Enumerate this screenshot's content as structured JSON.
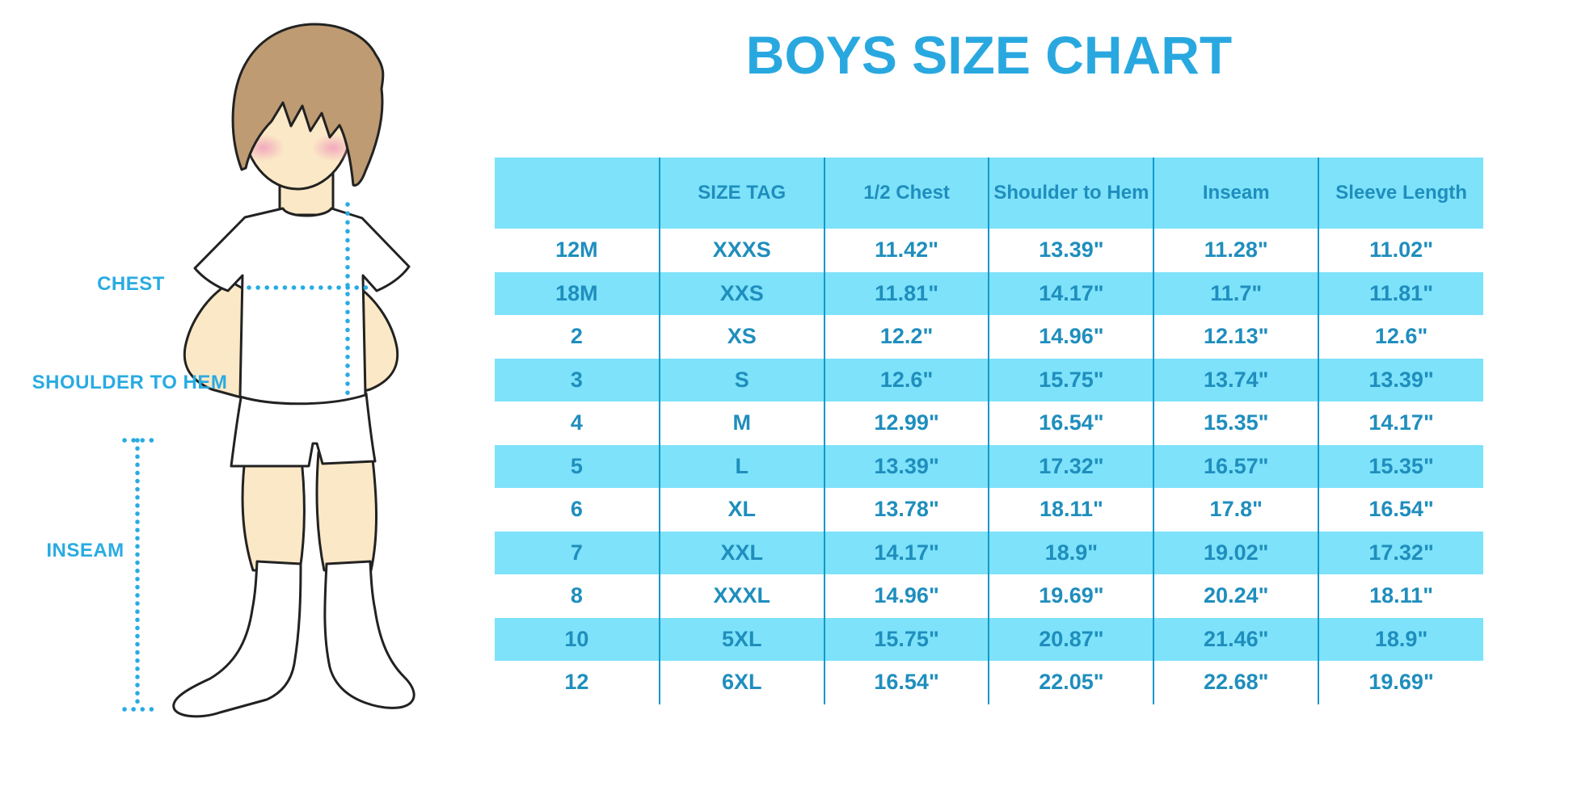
{
  "title": "BOYS SIZE CHART",
  "diagram": {
    "chest_label": "CHEST",
    "shoulder_to_hem_label": "SHOULDER TO HEM",
    "inseam_label": "INSEAM",
    "figure": "boy-in-tshirt-shorts-and-socks"
  },
  "chart_data": {
    "type": "table",
    "columns": [
      "",
      "SIZE TAG",
      "1/2 Chest",
      "Shoulder to Hem",
      "Inseam",
      "Sleeve Length"
    ],
    "rows": [
      [
        "12M",
        "XXXS",
        "11.42\"",
        "13.39\"",
        "11.28\"",
        "11.02\""
      ],
      [
        "18M",
        "XXS",
        "11.81\"",
        "14.17\"",
        "11.7\"",
        "11.81\""
      ],
      [
        "2",
        "XS",
        "12.2\"",
        "14.96\"",
        "12.13\"",
        "12.6\""
      ],
      [
        "3",
        "S",
        "12.6\"",
        "15.75\"",
        "13.74\"",
        "13.39\""
      ],
      [
        "4",
        "M",
        "12.99\"",
        "16.54\"",
        "15.35\"",
        "14.17\""
      ],
      [
        "5",
        "L",
        "13.39\"",
        "17.32\"",
        "16.57\"",
        "15.35\""
      ],
      [
        "6",
        "XL",
        "13.78\"",
        "18.11\"",
        "17.8\"",
        "16.54\""
      ],
      [
        "7",
        "XXL",
        "14.17\"",
        "18.9\"",
        "19.02\"",
        "17.32\""
      ],
      [
        "8",
        "XXXL",
        "14.96\"",
        "19.69\"",
        "20.24\"",
        "18.11\""
      ],
      [
        "10",
        "5XL",
        "15.75\"",
        "20.87\"",
        "21.46\"",
        "18.9\""
      ],
      [
        "12",
        "6XL",
        "16.54\"",
        "22.05\"",
        "22.68\"",
        "19.69\""
      ]
    ]
  },
  "colors": {
    "accent_blue": "#29A8E0",
    "stripe_blue": "#7DE2FA",
    "table_text_blue": "#1F8EBD",
    "grid_line_blue": "#1598CA",
    "dotted_line_blue": "#29ABE2"
  }
}
